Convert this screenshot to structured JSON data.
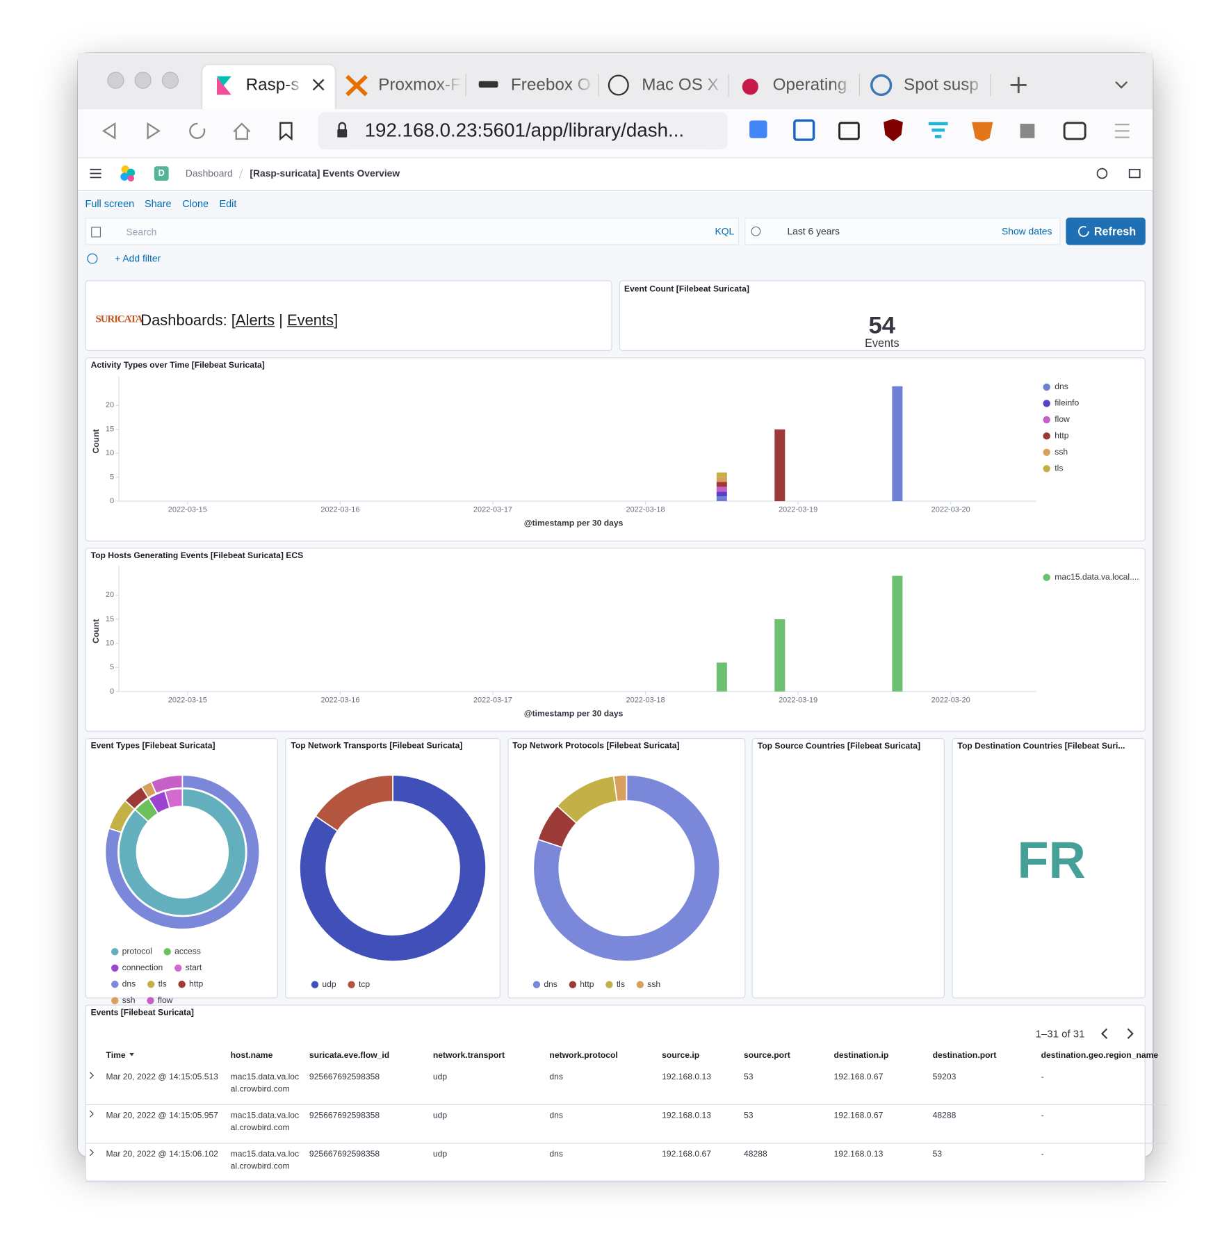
{
  "browser": {
    "tabs": [
      "Rasp-s",
      "Proxmox-F",
      "Freebox O",
      "Mac OS X",
      "Operating",
      "Spot susp"
    ],
    "url": "192.168.0.23:5601/app/library/dash..."
  },
  "header": {
    "space": "D",
    "breadcrumbs": [
      "Dashboard",
      "[Rasp-suricata] Events Overview"
    ]
  },
  "toolbar": {
    "links": [
      "Full screen",
      "Share",
      "Clone",
      "Edit"
    ],
    "search": "Search",
    "query_language": "KQL",
    "time_range": "Last 6 years",
    "show_dates": "Show dates",
    "refresh": "Refresh",
    "add_filter": "+ Add filter"
  },
  "markdown": {
    "logo": "SURICATA",
    "prefix": "Dashboards: [",
    "links": [
      "Alerts",
      "Events"
    ],
    "separator": "|",
    "suffix": "]"
  },
  "event_count": {
    "title": "Event Count [Filebeat Suricata]",
    "value": 54,
    "label": "Events"
  },
  "chart_data": [
    {
      "type": "bar",
      "stacked": true,
      "title": "Activity Types over Time [Filebeat Suricata]",
      "x": [
        3.5,
        3.88,
        4.65
      ],
      "xlim": [
        -0.45,
        5.56
      ],
      "xticks": [
        {
          "value": 0,
          "label": "2022-03-15"
        },
        {
          "value": 1,
          "label": "2022-03-16"
        },
        {
          "value": 2,
          "label": "2022-03-17"
        },
        {
          "value": 3,
          "label": "2022-03-18"
        },
        {
          "value": 4,
          "label": "2022-03-19"
        },
        {
          "value": 5,
          "label": "2022-03-20"
        }
      ],
      "xlabel": "@timestamp per 30 days",
      "ylabel": "Count",
      "ylim": [
        0,
        25
      ],
      "yticks": [
        0,
        5,
        10,
        15,
        20
      ],
      "legend": "right",
      "series": [
        {
          "name": "dns",
          "color": "#6e80d4",
          "values": [
            1,
            0,
            24
          ]
        },
        {
          "name": "fileinfo",
          "color": "#5b3fc9",
          "values": [
            1,
            0,
            0
          ]
        },
        {
          "name": "flow",
          "color": "#c660c6",
          "values": [
            1,
            0,
            0
          ]
        },
        {
          "name": "http",
          "color": "#9c3a37",
          "values": [
            1,
            15,
            0
          ]
        },
        {
          "name": "ssh",
          "color": "#d8a05e",
          "values": [
            1,
            0,
            0
          ]
        },
        {
          "name": "tls",
          "color": "#c3b046",
          "values": [
            1,
            0,
            0
          ]
        }
      ]
    },
    {
      "type": "bar",
      "title": "Top Hosts Generating Events [Filebeat Suricata] ECS",
      "x": [
        3.5,
        3.88,
        4.65
      ],
      "xlim": [
        -0.45,
        5.56
      ],
      "xticks": [
        {
          "value": 0,
          "label": "2022-03-15"
        },
        {
          "value": 1,
          "label": "2022-03-16"
        },
        {
          "value": 2,
          "label": "2022-03-17"
        },
        {
          "value": 3,
          "label": "2022-03-18"
        },
        {
          "value": 4,
          "label": "2022-03-19"
        },
        {
          "value": 5,
          "label": "2022-03-20"
        }
      ],
      "xlabel": "@timestamp per 30 days",
      "ylabel": "Count",
      "ylim": [
        0,
        25
      ],
      "yticks": [
        0,
        5,
        10,
        15,
        20
      ],
      "legend": "right",
      "series": [
        {
          "name": "mac15.data.va.local....",
          "color": "#6dbf72",
          "values": [
            6,
            15,
            24
          ]
        }
      ]
    },
    {
      "type": "pie",
      "title": "Event Types [Filebeat Suricata]",
      "rings": [
        {
          "categories": [
            "protocol",
            "access",
            "connection",
            "start"
          ],
          "values": [
            39,
            2,
            2,
            2
          ],
          "colors": [
            "#63afbd",
            "#6cc15a",
            "#9b44d0",
            "#d36bcf"
          ]
        },
        {
          "categories": [
            "dns",
            "tls",
            "http",
            "ssh",
            "flow"
          ],
          "values": [
            36,
            3,
            2,
            1,
            3
          ],
          "colors": [
            "#7b87d8",
            "#c3b046",
            "#9c3a37",
            "#d8a05e",
            "#c660c6"
          ]
        }
      ]
    },
    {
      "type": "pie",
      "title": "Top Network Transports [Filebeat Suricata]",
      "categories": [
        "udp",
        "tcp"
      ],
      "values": [
        38,
        7
      ],
      "colors": [
        "#4150b8",
        "#b4553f"
      ]
    },
    {
      "type": "pie",
      "title": "Top Network Protocols [Filebeat Suricata]",
      "categories": [
        "dns",
        "http",
        "tls",
        "ssh"
      ],
      "values": [
        36,
        3,
        5,
        1
      ],
      "colors": [
        "#7b87d8",
        "#9c3a37",
        "#c3b046",
        "#d8a05e"
      ]
    }
  ],
  "source_countries": {
    "title": "Top Source Countries [Filebeat Suricata]"
  },
  "destination_countries": {
    "title": "Top Destination Countries [Filebeat Suri...",
    "value": "FR"
  },
  "events_table": {
    "title": "Events [Filebeat Suricata]",
    "pagination": "1–31 of 31",
    "columns": [
      "Time",
      "host.name",
      "suricata.eve.flow_id",
      "network.transport",
      "network.protocol",
      "source.ip",
      "source.port",
      "destination.ip",
      "destination.port",
      "destination.geo.region_name"
    ],
    "rows": [
      [
        "Mar 20, 2022 @ 14:15:05.513",
        "mac15.data.va.local.crowbird.com",
        "925667692598358",
        "udp",
        "dns",
        "192.168.0.13",
        "53",
        "192.168.0.67",
        "59203",
        "-"
      ],
      [
        "Mar 20, 2022 @ 14:15:05.957",
        "mac15.data.va.local.crowbird.com",
        "925667692598358",
        "udp",
        "dns",
        "192.168.0.13",
        "53",
        "192.168.0.67",
        "48288",
        "-"
      ],
      [
        "Mar 20, 2022 @ 14:15:06.102",
        "mac15.data.va.local.crowbird.com",
        "925667692598358",
        "udp",
        "dns",
        "192.168.0.67",
        "48288",
        "192.168.0.13",
        "53",
        "-"
      ]
    ]
  }
}
